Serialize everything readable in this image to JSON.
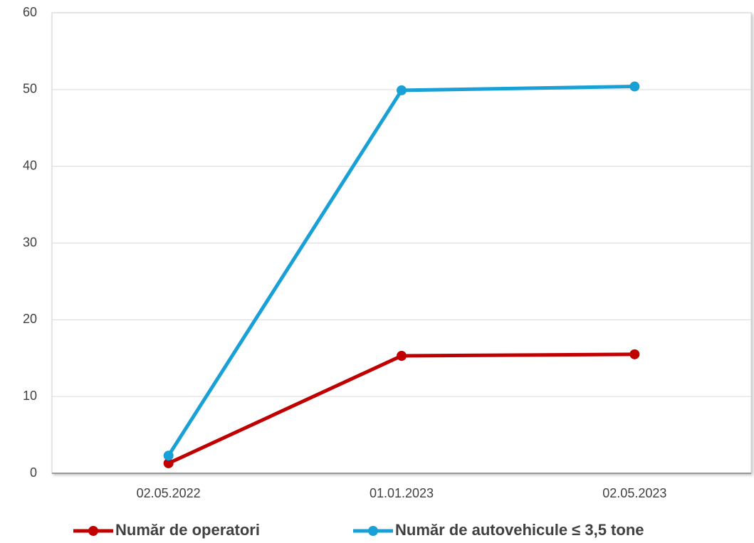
{
  "chart_data": {
    "type": "line",
    "categories": [
      "02.05.2022",
      "01.01.2023",
      "02.05.2023"
    ],
    "series": [
      {
        "name": "Număr de operatori",
        "color": "#c00000",
        "values": [
          1.3,
          15.3,
          15.5
        ]
      },
      {
        "name": "Număr de autovehicule ≤ 3,5 tone",
        "color": "#19a0d6",
        "values": [
          2.3,
          49.9,
          50.4
        ]
      }
    ],
    "ylim": [
      0,
      60
    ],
    "yticks": [
      0,
      10,
      20,
      30,
      40,
      50,
      60
    ],
    "grid": true,
    "legend": "bottom"
  }
}
